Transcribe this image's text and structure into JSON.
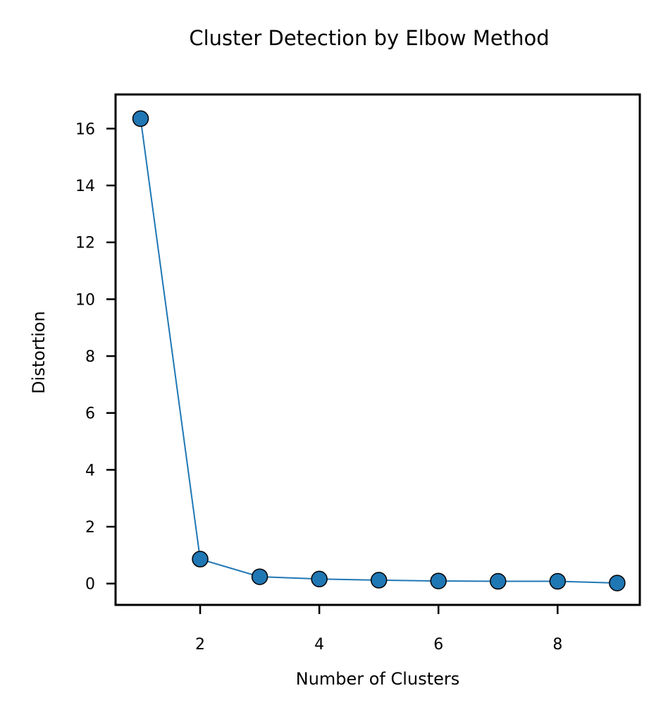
{
  "chart_data": {
    "type": "line",
    "title": "Cluster Detection by Elbow Method",
    "xlabel": "Number of Clusters",
    "ylabel": "Distortion",
    "x": [
      1,
      2,
      3,
      4,
      5,
      6,
      7,
      8,
      9
    ],
    "series": [
      {
        "name": "Distortion",
        "values": [
          16.35,
          0.86,
          0.24,
          0.16,
          0.12,
          0.09,
          0.08,
          0.08,
          0.02
        ]
      }
    ],
    "xlim": [
      0.58,
      9.38
    ],
    "ylim": [
      -0.75,
      17.2
    ],
    "xticks": [
      2,
      4,
      6,
      8
    ],
    "yticks": [
      0,
      2,
      4,
      6,
      8,
      10,
      12,
      14,
      16
    ],
    "grid": false,
    "legend": "none",
    "colors": {
      "line": "#1f77b4",
      "marker_face": "#1f77b4",
      "marker_edge": "#000000",
      "axes": "#000000"
    }
  }
}
